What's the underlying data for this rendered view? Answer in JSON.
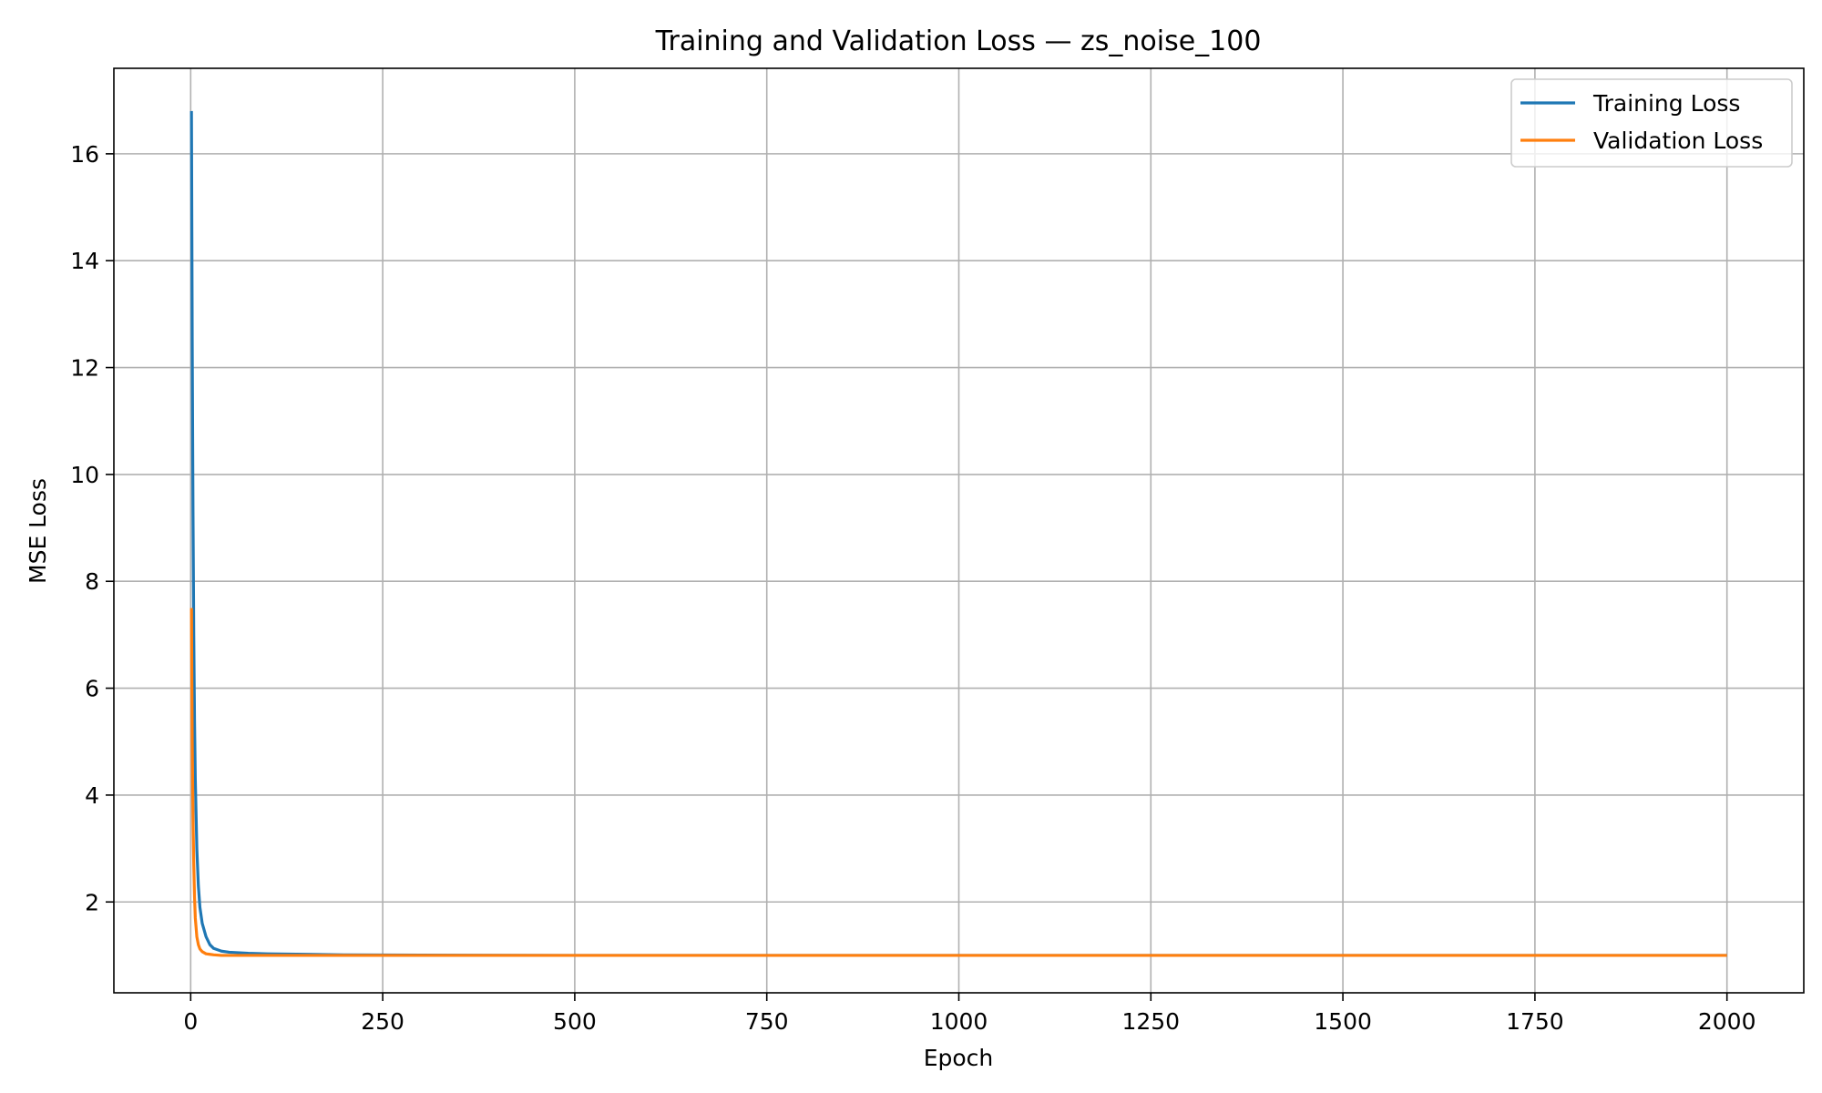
{
  "chart_data": {
    "type": "line",
    "title": "Training and Validation Loss — zs_noise_100",
    "xlabel": "Epoch",
    "ylabel": "MSE Loss",
    "xlim": [
      -100,
      2100
    ],
    "ylim": [
      0.3,
      17.6
    ],
    "xticks": [
      0,
      250,
      500,
      750,
      1000,
      1250,
      1500,
      1750,
      2000
    ],
    "yticks": [
      2,
      4,
      6,
      8,
      10,
      12,
      14,
      16
    ],
    "grid": true,
    "legend_position": "top-right",
    "series": [
      {
        "name": "Training Loss",
        "color": "#1f77b4",
        "x": [
          1,
          2,
          3,
          4,
          5,
          6,
          8,
          10,
          12,
          15,
          20,
          25,
          30,
          40,
          50,
          75,
          100,
          150,
          200,
          300,
          500,
          1000,
          1500,
          2000
        ],
        "y": [
          16.8,
          12.5,
          9.3,
          7.0,
          5.4,
          4.3,
          3.0,
          2.3,
          1.9,
          1.6,
          1.35,
          1.2,
          1.13,
          1.08,
          1.06,
          1.04,
          1.03,
          1.02,
          1.01,
          1.005,
          1.0,
          1.0,
          1.0,
          1.0
        ]
      },
      {
        "name": "Validation Loss",
        "color": "#ff7f0e",
        "x": [
          1,
          2,
          3,
          4,
          5,
          6,
          8,
          10,
          12,
          15,
          20,
          25,
          30,
          40,
          50,
          75,
          100,
          200,
          500,
          1000,
          1500,
          2000
        ],
        "y": [
          7.5,
          5.0,
          3.6,
          2.7,
          2.1,
          1.7,
          1.35,
          1.2,
          1.12,
          1.07,
          1.03,
          1.02,
          1.01,
          1.0,
          1.0,
          1.0,
          1.0,
          1.0,
          1.0,
          1.0,
          1.0,
          1.0
        ]
      }
    ]
  }
}
